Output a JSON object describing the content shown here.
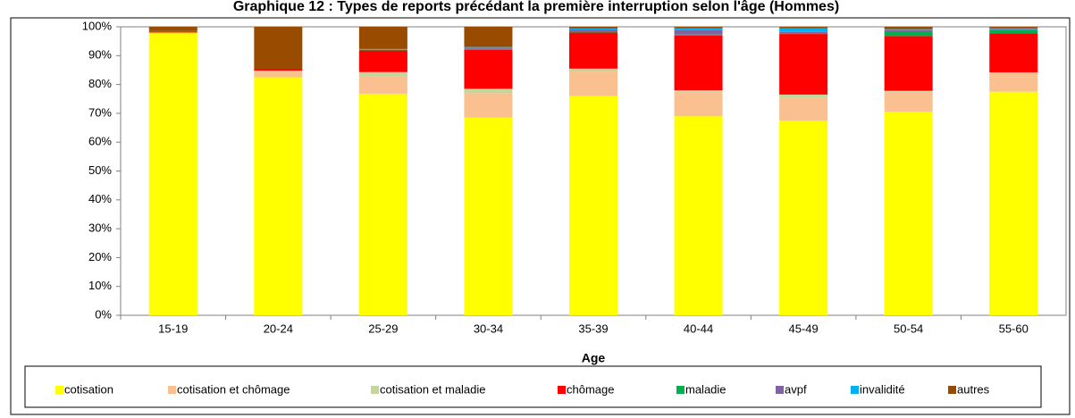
{
  "chart_data": {
    "type": "stacked_bar",
    "title": "Graphique 12 : Types de reports précédant la première interruption selon l'âge (Hommes)",
    "x_label": "Age",
    "categories": [
      "15-19",
      "20-24",
      "25-29",
      "30-34",
      "35-39",
      "40-44",
      "45-49",
      "50-54",
      "55-60"
    ],
    "series": [
      {
        "name": "cotisation",
        "color": "#ffff00",
        "values": [
          98,
          82.5,
          76.8,
          68.5,
          76,
          69,
          67.5,
          70.5,
          77.5
        ]
      },
      {
        "name": "cotisation et chômage",
        "color": "#fac090",
        "values": [
          0,
          2,
          6,
          8.5,
          8.5,
          8.5,
          8,
          7,
          6.5
        ]
      },
      {
        "name": "cotisation et maladie",
        "color": "#c3d69b",
        "values": [
          0,
          0.3,
          1.5,
          1.5,
          1,
          0.5,
          1,
          0.3,
          0.2
        ]
      },
      {
        "name": "chômage",
        "color": "#ff0000",
        "values": [
          0.3,
          0.5,
          7.5,
          13.5,
          12.5,
          19,
          21,
          19,
          13.5
        ]
      },
      {
        "name": "maladie",
        "color": "#00b050",
        "values": [
          0,
          0,
          0.2,
          0.3,
          0.3,
          0.3,
          0.3,
          1.5,
          1.3
        ]
      },
      {
        "name": "avpf",
        "color": "#8064a2",
        "values": [
          0,
          0,
          0.2,
          0.3,
          0.8,
          1.7,
          0.4,
          0.5,
          0.3
        ]
      },
      {
        "name": "invalidité",
        "color": "#00b0f0",
        "values": [
          0.2,
          0,
          0.1,
          0.4,
          0.3,
          0.5,
          1.3,
          0.4,
          0.2
        ]
      },
      {
        "name": "autres",
        "color": "#994c00",
        "values": [
          1.5,
          14.7,
          7.7,
          7,
          0.6,
          0.5,
          0.5,
          0.8,
          0.5
        ]
      }
    ],
    "ylim": [
      0,
      100
    ],
    "yticks": [
      {
        "value": 0,
        "label": "0%"
      },
      {
        "value": 10,
        "label": "10%"
      },
      {
        "value": 20,
        "label": "20%"
      },
      {
        "value": 30,
        "label": "30%"
      },
      {
        "value": 40,
        "label": "40%"
      },
      {
        "value": 50,
        "label": "50%"
      },
      {
        "value": 60,
        "label": "60%"
      },
      {
        "value": 70,
        "label": "70%"
      },
      {
        "value": 80,
        "label": "80%"
      },
      {
        "value": 90,
        "label": "90%"
      },
      {
        "value": 100,
        "label": "100%"
      }
    ],
    "legend_position": "bottom"
  }
}
